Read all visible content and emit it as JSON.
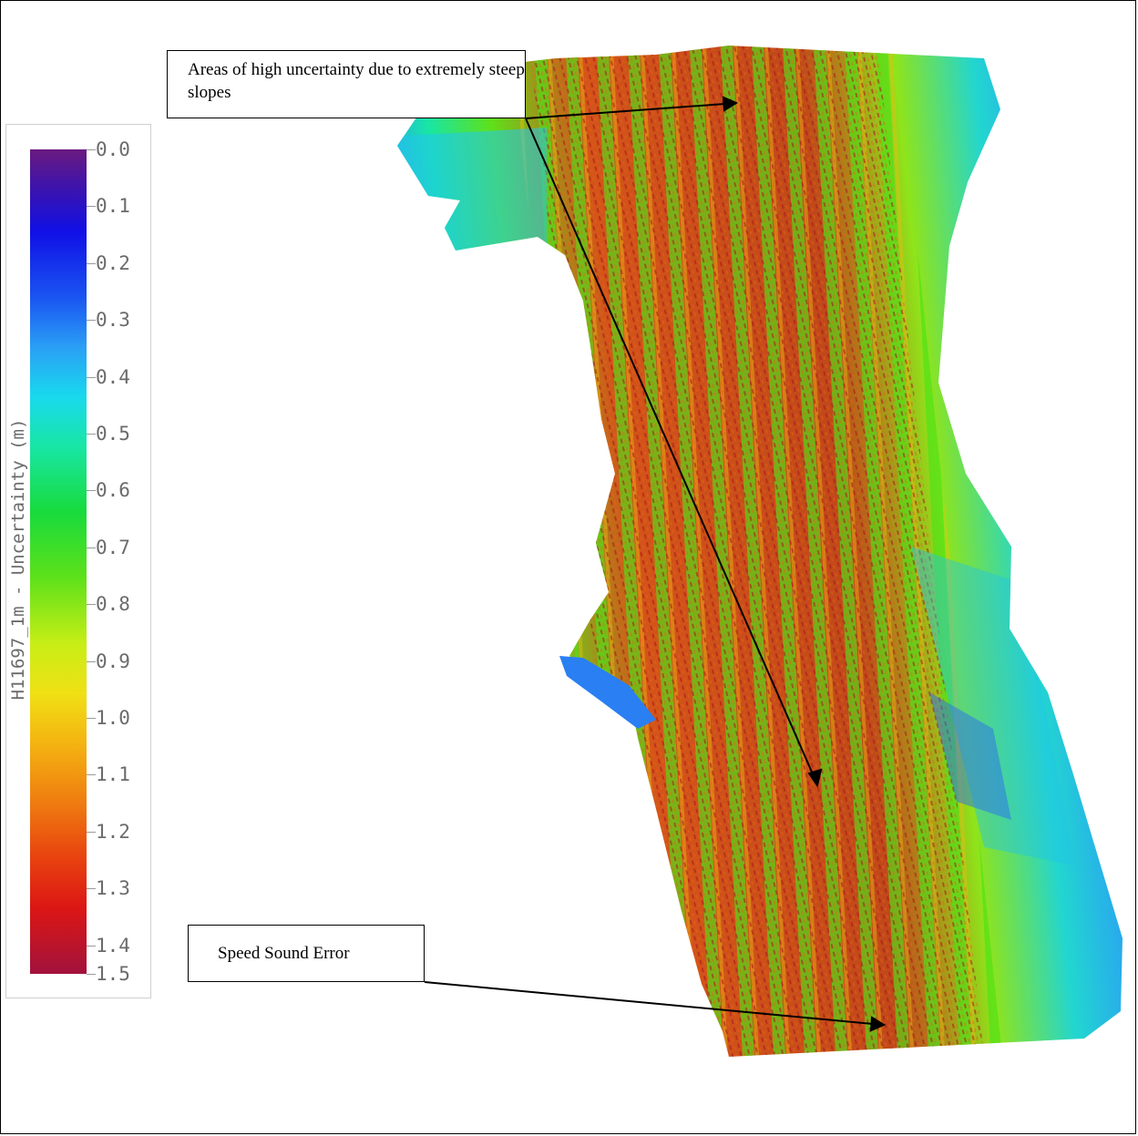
{
  "legend": {
    "title": "H11697_1m - Uncertainty (m)",
    "ticks": [
      "0.0",
      "0.1",
      "0.2",
      "0.3",
      "0.4",
      "0.5",
      "0.6",
      "0.7",
      "0.8",
      "0.9",
      "1.0",
      "1.1",
      "1.2",
      "1.3",
      "1.4",
      "1.5"
    ],
    "range": [
      0.0,
      1.5
    ],
    "colors": {
      "low": "#6a1a80",
      "mid_low": "#1010e6",
      "mid": "#18db3c",
      "mid_high": "#f0e014",
      "high": "#a2123c"
    }
  },
  "annotations": {
    "steep_slopes": "Areas of high uncertainty due to extremely steep slopes",
    "speed_sound": "Speed Sound Error"
  }
}
